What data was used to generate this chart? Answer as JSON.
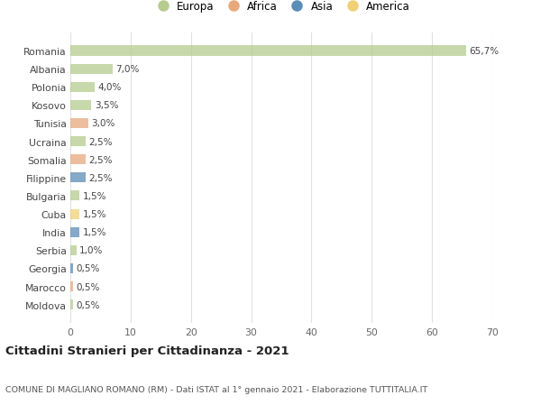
{
  "countries": [
    "Romania",
    "Albania",
    "Polonia",
    "Kosovo",
    "Tunisia",
    "Ucraina",
    "Somalia",
    "Filippine",
    "Bulgaria",
    "Cuba",
    "India",
    "Serbia",
    "Georgia",
    "Marocco",
    "Moldova"
  ],
  "values": [
    65.7,
    7.0,
    4.0,
    3.5,
    3.0,
    2.5,
    2.5,
    2.5,
    1.5,
    1.5,
    1.5,
    1.0,
    0.5,
    0.5,
    0.5
  ],
  "labels": [
    "65,7%",
    "7,0%",
    "4,0%",
    "3,5%",
    "3,0%",
    "2,5%",
    "2,5%",
    "2,5%",
    "1,5%",
    "1,5%",
    "1,5%",
    "1,0%",
    "0,5%",
    "0,5%",
    "0,5%"
  ],
  "colors": [
    "#b5cc8e",
    "#b5cc8e",
    "#b5cc8e",
    "#b5cc8e",
    "#e8a87c",
    "#b5cc8e",
    "#e8a87c",
    "#5b8db8",
    "#b5cc8e",
    "#f0cf76",
    "#5b8db8",
    "#b5cc8e",
    "#5b8db8",
    "#e8a87c",
    "#b5cc8e"
  ],
  "legend_labels": [
    "Europa",
    "Africa",
    "Asia",
    "America"
  ],
  "legend_colors": [
    "#b5cc8e",
    "#e8a87c",
    "#5b8db8",
    "#f0cf76"
  ],
  "title": "Cittadini Stranieri per Cittadinanza - 2021",
  "subtitle": "COMUNE DI MAGLIANO ROMANO (RM) - Dati ISTAT al 1° gennaio 2021 - Elaborazione TUTTITALIA.IT",
  "xlim": [
    0,
    70
  ],
  "xticks": [
    0,
    10,
    20,
    30,
    40,
    50,
    60,
    70
  ],
  "bg_color": "#ffffff",
  "grid_color": "#e0e0e0"
}
